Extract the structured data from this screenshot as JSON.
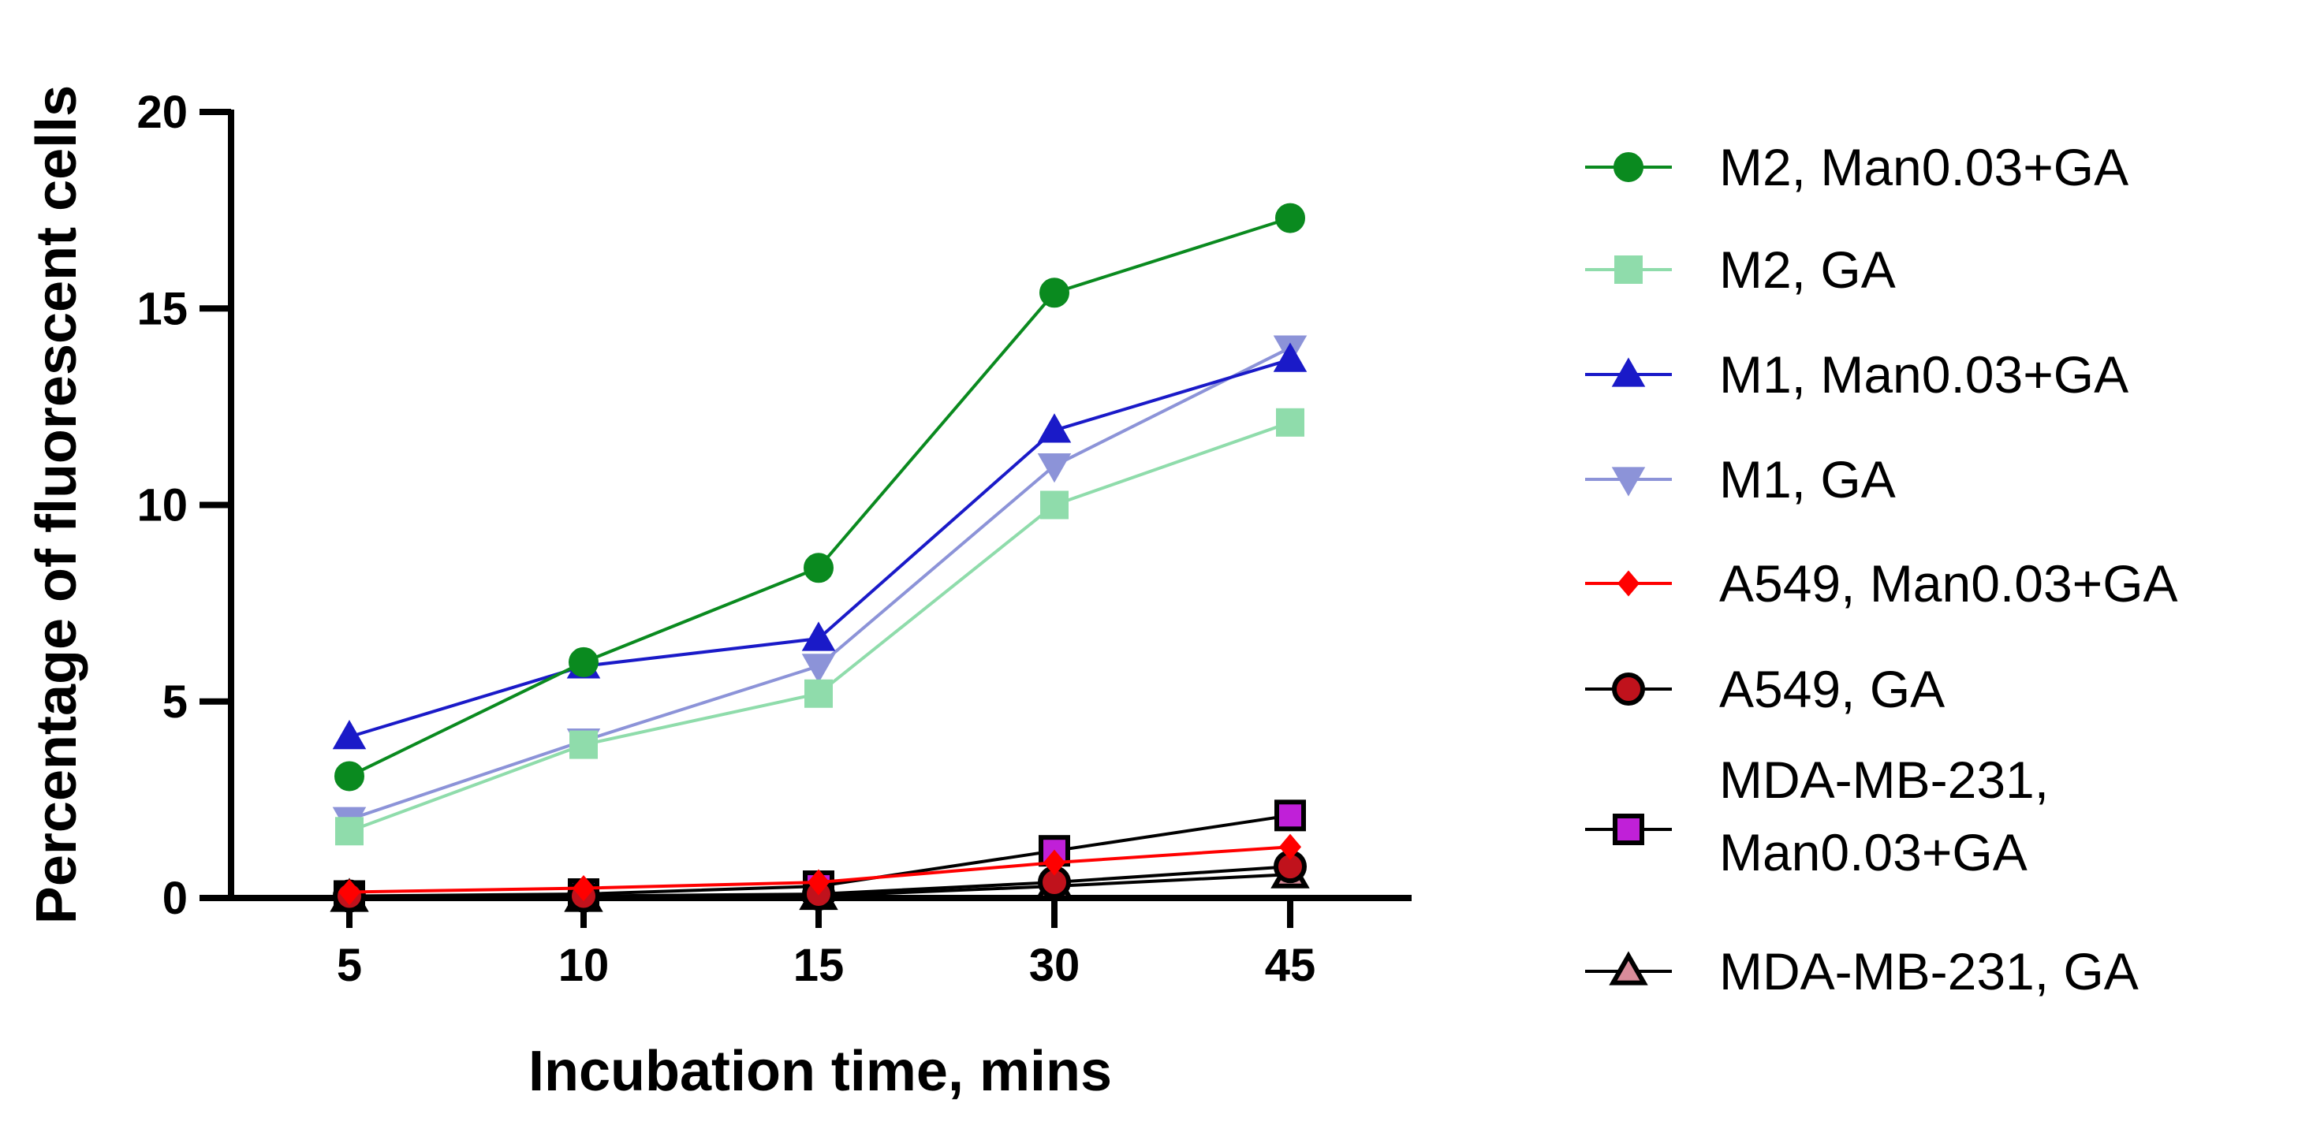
{
  "chart_data": {
    "type": "line",
    "title": "",
    "xlabel": "Incubation time, mins",
    "ylabel": "Percentage of fluorescent cells",
    "categories": [
      "5",
      "10",
      "15",
      "30",
      "45"
    ],
    "ylim": [
      0,
      20
    ],
    "yticks": [
      0,
      5,
      10,
      15,
      20
    ],
    "grid": false,
    "legend": "right",
    "series": [
      {
        "name": "M2, Man0.03+GA",
        "values": [
          3.1,
          6.0,
          8.4,
          15.4,
          17.3
        ],
        "line_color": "#0a8a1f",
        "marker": "circle",
        "marker_fill": "#0a8a1f",
        "marker_stroke": "#0a8a1f"
      },
      {
        "name": "M2, GA",
        "values": [
          1.7,
          3.9,
          5.2,
          10.0,
          12.1
        ],
        "line_color": "#8fdcab",
        "marker": "square",
        "marker_fill": "#8fdcab",
        "marker_stroke": "#8fdcab"
      },
      {
        "name": "M1, Man0.03+GA",
        "values": [
          4.1,
          5.9,
          6.6,
          11.9,
          13.7
        ],
        "line_color": "#1a1ac8",
        "marker": "triangle-up",
        "marker_fill": "#1a1ac8",
        "marker_stroke": "#1a1ac8"
      },
      {
        "name": "M1, GA",
        "values": [
          2.0,
          4.0,
          5.9,
          11.0,
          14.0
        ],
        "line_color": "#8c93d8",
        "marker": "triangle-down",
        "marker_fill": "#8c93d8",
        "marker_stroke": "#8c93d8"
      },
      {
        "name": "A549, Man0.03+GA",
        "values": [
          0.15,
          0.25,
          0.4,
          0.9,
          1.3
        ],
        "line_color": "#ff0000",
        "marker": "diamond",
        "marker_fill": "#ff0000",
        "marker_stroke": "#ff0000"
      },
      {
        "name": "A549, GA",
        "values": [
          0.05,
          0.05,
          0.1,
          0.4,
          0.8
        ],
        "line_color": "#000000",
        "marker": "circle",
        "marker_fill": "#c0121c",
        "marker_stroke": "#000000"
      },
      {
        "name": "MDA-MB-231, Man0.03+GA",
        "legend_lines": [
          "MDA-MB-231,",
          "Man0.03+GA"
        ],
        "values": [
          0.05,
          0.1,
          0.3,
          1.2,
          2.1
        ],
        "line_color": "#000000",
        "marker": "square",
        "marker_fill": "#c020d8",
        "marker_stroke": "#000000"
      },
      {
        "name": "MDA-MB-231, GA",
        "values": [
          0.0,
          0.0,
          0.05,
          0.3,
          0.6
        ],
        "line_color": "#000000",
        "marker": "triangle-up",
        "marker_fill": "#d98c9a",
        "marker_stroke": "#000000"
      }
    ]
  }
}
